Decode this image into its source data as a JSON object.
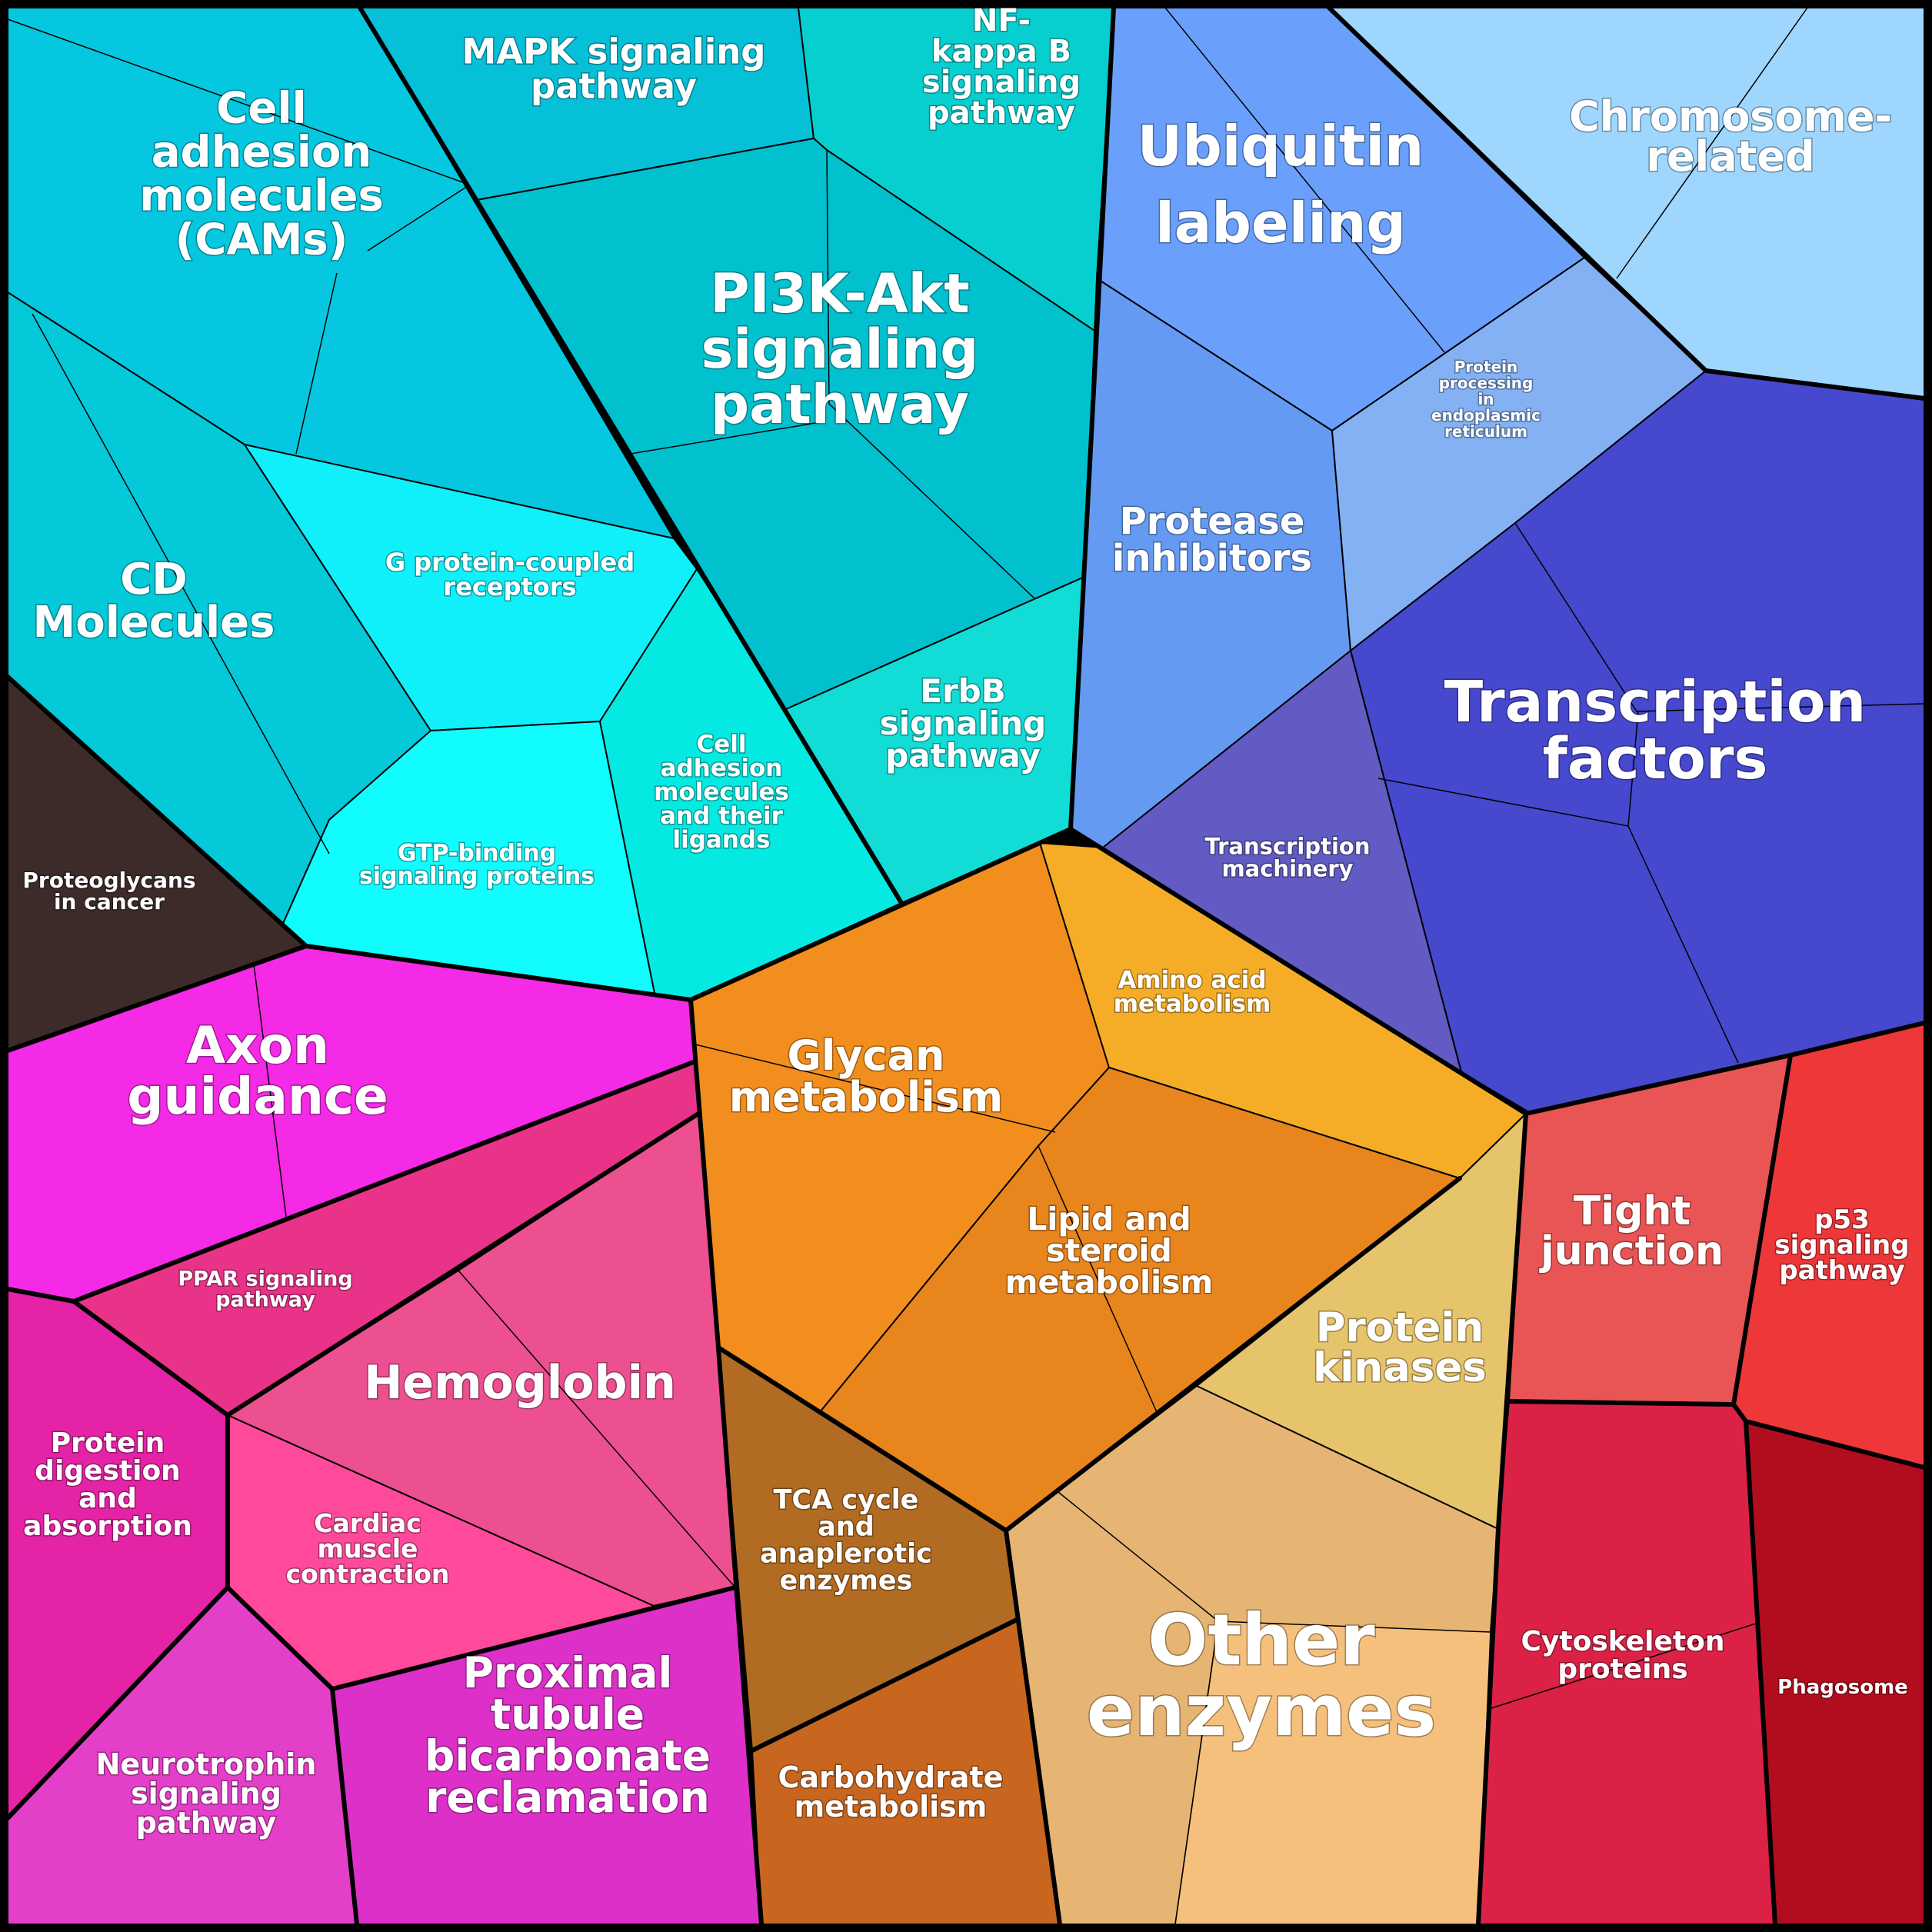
{
  "cells": [
    {
      "key": "cams",
      "label": [
        "Cell",
        "adhesion",
        "molecules",
        "(CAMs)"
      ],
      "color": "#05c8e0"
    },
    {
      "key": "mapk",
      "label": [
        "MAPK signaling",
        "pathway"
      ],
      "color": "#06c0d8"
    },
    {
      "key": "nfkb",
      "label": [
        "NF-",
        "kappa B",
        "signaling",
        "pathway"
      ],
      "color": "#08cfcf"
    },
    {
      "key": "pi3k",
      "label": [
        "PI3K-Akt",
        "signaling",
        "pathway"
      ],
      "color": "#02c1cf"
    },
    {
      "key": "cd",
      "label": [
        "CD",
        "Molecules"
      ],
      "color": "#03c9d9"
    },
    {
      "key": "gpcr",
      "label": [
        "G protein-coupled",
        "receptors"
      ],
      "color": "#0ff0fa"
    },
    {
      "key": "gtp",
      "label": [
        "GTP-binding",
        "signaling proteins"
      ],
      "color": "#10fcff"
    },
    {
      "key": "cell_lig",
      "label": [
        "Cell",
        "adhesion",
        "molecules",
        "and their",
        "ligands"
      ],
      "color": "#04eae2"
    },
    {
      "key": "erbb",
      "label": [
        "ErbB",
        "signaling",
        "pathway"
      ],
      "color": "#12dcd6"
    },
    {
      "key": "proteoglycans",
      "label": [
        "Proteoglycans",
        "in cancer"
      ],
      "color": "#3d2b2a"
    },
    {
      "key": "ubiquitin",
      "label": [
        "Ubiquitin",
        "labeling"
      ],
      "color": "#6aa0fc"
    },
    {
      "key": "chromosome",
      "label": [
        "Chromosome-",
        "related"
      ],
      "color": "#9fd6fe"
    },
    {
      "key": "protease",
      "label": [
        "Protease",
        "inhibitors"
      ],
      "color": "#659af3"
    },
    {
      "key": "er_processing",
      "label": [
        "Protein",
        "processing",
        "in",
        "endoplasmic",
        "reticulum"
      ],
      "color": "#84b1f3"
    },
    {
      "key": "tf",
      "label": [
        "Transcription",
        "factors"
      ],
      "color": "#4648cd"
    },
    {
      "key": "tmach",
      "label": [
        "Transcription",
        "machinery"
      ],
      "color": "#625bc4"
    },
    {
      "key": "axon",
      "label": [
        "Axon",
        "guidance"
      ],
      "color": "#f42ae6"
    },
    {
      "key": "ppar",
      "label": [
        "PPAR signaling",
        "pathway"
      ],
      "color": "#e83388"
    },
    {
      "key": "hemoglobin",
      "label": [
        "Hemoglobin"
      ],
      "color": "#ec5090"
    },
    {
      "key": "cardiac",
      "label": [
        "Cardiac",
        "muscle",
        "contraction"
      ],
      "color": "#ff4a9c"
    },
    {
      "key": "protein_dig",
      "label": [
        "Protein",
        "digestion",
        "and",
        "absorption"
      ],
      "color": "#e523a6"
    },
    {
      "key": "neurotrophin",
      "label": [
        "Neurotrophin",
        "signaling",
        "pathway"
      ],
      "color": "#e43fc8"
    },
    {
      "key": "proximal",
      "label": [
        "Proximal",
        "tubule",
        "bicarbonate",
        "reclamation"
      ],
      "color": "#dc30c8"
    },
    {
      "key": "glycan",
      "label": [
        "Glycan",
        "metabolism"
      ],
      "color": "#f28e1e"
    },
    {
      "key": "amino",
      "label": [
        "Amino acid",
        "metabolism"
      ],
      "color": "#f5ad27"
    },
    {
      "key": "lipid",
      "label": [
        "Lipid and",
        "steroid",
        "metabolism"
      ],
      "color": "#e8851d"
    },
    {
      "key": "kinases",
      "label": [
        "Protein",
        "kinases"
      ],
      "color": "#e6c46c"
    },
    {
      "key": "tca",
      "label": [
        "TCA cycle",
        "and",
        "anaplerotic",
        "enzymes"
      ],
      "color": "#b26b22"
    },
    {
      "key": "carb",
      "label": [
        "Carbohydrate",
        "metabolism"
      ],
      "color": "#c8661f"
    },
    {
      "key": "other",
      "label": [
        "Other",
        "enzymes"
      ],
      "color": "#e6b574"
    },
    {
      "key": "tight",
      "label": [
        "Tight",
        "junction"
      ],
      "color": "#e95454"
    },
    {
      "key": "p53",
      "label": [
        "p53",
        "signaling",
        "pathway"
      ],
      "color": "#ee3739"
    },
    {
      "key": "cyto",
      "label": [
        "Cytoskeleton",
        "proteins"
      ],
      "color": "#dc2147"
    },
    {
      "key": "phago",
      "label": [
        "Phagosome"
      ],
      "color": "#b20d1e"
    }
  ]
}
